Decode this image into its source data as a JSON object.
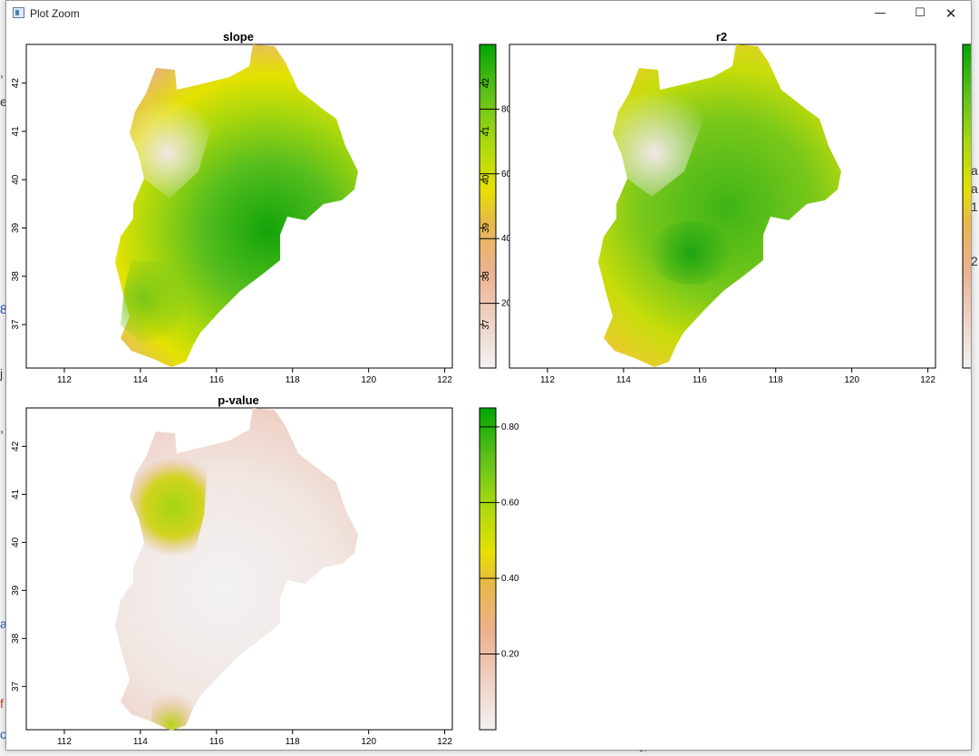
{
  "window": {
    "title": "Plot Zoom"
  },
  "background_fragments": [
    ",",
    "e",
    "8",
    "j",
    ",",
    "a",
    "f",
    "o",
    "a",
    "a",
    "1",
    "2",
    "37"
  ],
  "axes_ticks": {
    "lon": [
      "112",
      "114",
      "116",
      "118",
      "120",
      "122"
    ],
    "lat": [
      "37",
      "38",
      "39",
      "40",
      "41",
      "42"
    ]
  },
  "chart_data": [
    {
      "type": "heatmap",
      "title": "slope",
      "xlim": [
        111,
        122.2
      ],
      "ylim": [
        36.1,
        42.8
      ],
      "x_ticks": [
        112,
        114,
        116,
        118,
        120,
        122
      ],
      "y_ticks": [
        37,
        38,
        39,
        40,
        41,
        42
      ],
      "colorbar": {
        "min": 0,
        "max": 100,
        "ticks": [
          20,
          40,
          60,
          80
        ],
        "colors": [
          "#f2f2f2",
          "#ebb291",
          "#e8c23c",
          "#e6e600",
          "#8fd41b",
          "#00a600"
        ],
        "overlap_ticks": [
          "37",
          "38",
          "39",
          "40",
          "41",
          "42"
        ]
      }
    },
    {
      "type": "heatmap",
      "title": "r2",
      "xlim": [
        111,
        122.2
      ],
      "ylim": [
        36.1,
        42.8
      ],
      "x_ticks": [
        112,
        114,
        116,
        118,
        120,
        122
      ],
      "y_ticks": [],
      "colorbar": {
        "min": 0,
        "max": 100,
        "ticks": [],
        "colors": [
          "#f2f2f2",
          "#ebb291",
          "#e8c23c",
          "#e6e600",
          "#8fd41b",
          "#00a600"
        ],
        "overlap_ticks": []
      }
    },
    {
      "type": "heatmap",
      "title": "p-value",
      "xlim": [
        111,
        122.2
      ],
      "ylim": [
        36.1,
        42.8
      ],
      "x_ticks": [
        112,
        114,
        116,
        118,
        120,
        122
      ],
      "y_ticks": [
        37,
        38,
        39,
        40,
        41,
        42
      ],
      "colorbar": {
        "min": 0,
        "max": 0.85,
        "ticks": [
          "0.20",
          "0.40",
          "0.60",
          "0.80"
        ],
        "colors": [
          "#f2f2f2",
          "#ebb291",
          "#e8c23c",
          "#e6e600",
          "#8fd41b",
          "#00a600"
        ],
        "overlap_ticks": []
      }
    }
  ]
}
